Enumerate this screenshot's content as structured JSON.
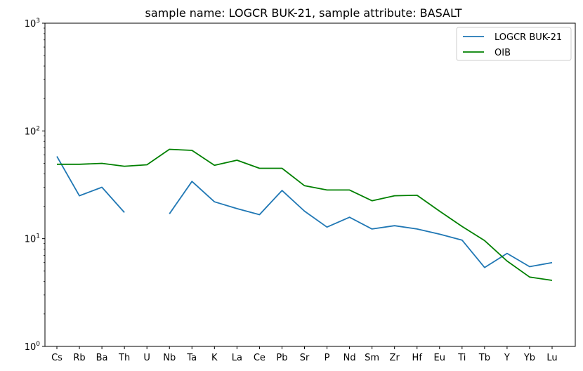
{
  "chart_data": {
    "type": "line",
    "title": "sample name: LOGCR BUK-21, sample attribute: BASALT",
    "xlabel": "",
    "ylabel": "",
    "yscale": "log",
    "ylim": [
      1,
      1000
    ],
    "y_ticks": [
      {
        "value": 1,
        "base": "10",
        "exp": "0"
      },
      {
        "value": 10,
        "base": "10",
        "exp": "1"
      },
      {
        "value": 100,
        "base": "10",
        "exp": "2"
      },
      {
        "value": 1000,
        "base": "10",
        "exp": "3"
      }
    ],
    "categories": [
      "Cs",
      "Rb",
      "Ba",
      "Th",
      "U",
      "Nb",
      "Ta",
      "K",
      "La",
      "Ce",
      "Pb",
      "Sr",
      "P",
      "Nd",
      "Sm",
      "Zr",
      "Hf",
      "Eu",
      "Ti",
      "Tb",
      "Y",
      "Yb",
      "Lu"
    ],
    "series": [
      {
        "name": "LOGCR BUK-21",
        "color": "#1f77b4",
        "values": [
          58,
          25,
          30,
          17.5,
          null,
          17,
          34,
          22,
          19,
          16.7,
          28,
          18,
          12.8,
          15.8,
          12.3,
          13.2,
          12.3,
          11,
          9.7,
          5.4,
          7.3,
          5.5,
          6
        ]
      },
      {
        "name": "OIB",
        "color": "#008000",
        "values": [
          49,
          49,
          50,
          47,
          48.5,
          67.5,
          66,
          48,
          53.5,
          45,
          45,
          31,
          28.3,
          28.3,
          22.5,
          25,
          25.3,
          18,
          13,
          9.6,
          6.2,
          4.4,
          4.1
        ]
      }
    ],
    "legend_position": "top-right"
  }
}
